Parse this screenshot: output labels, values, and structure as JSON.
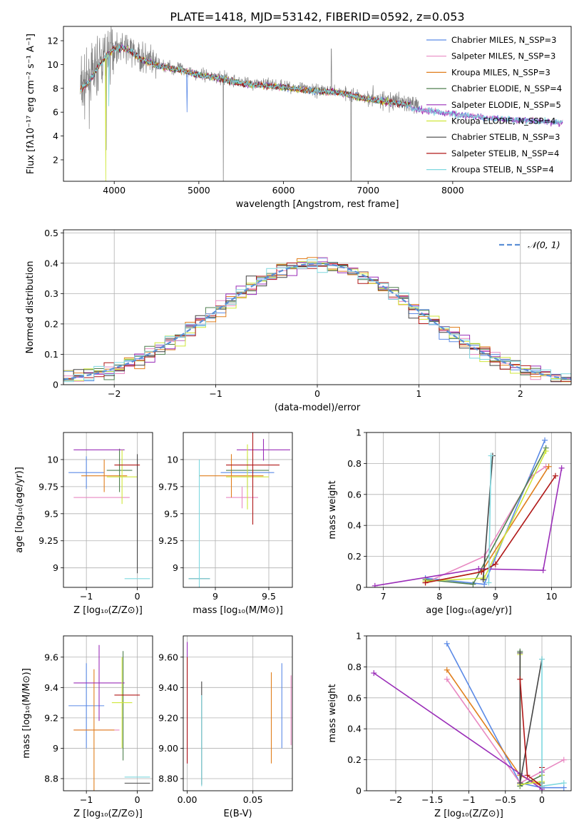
{
  "figure_title": "PLATE=1418, MJD=53142, FIBERID=0592, z=0.053",
  "colors": {
    "Chabrier MILES": "#5b8ae6",
    "Salpeter MILES": "#e889c2",
    "Kroupa MILES": "#e07e1c",
    "Chabrier ELODIE": "#4f7f4f",
    "Salpeter ELODIE": "#9a2db8",
    "Kroupa ELODIE": "#cfe73a",
    "Chabrier STELIB": "#444444",
    "Salpeter STELIB": "#b01818",
    "Kroupa STELIB": "#7fd8df",
    "data": "#808080",
    "normal": "#5b8fd6"
  },
  "chart_data": [
    {
      "id": "spectrum",
      "type": "line",
      "xlabel": "wavelength [Angstrom, rest frame]",
      "ylabel": "Flux [fλ10⁻¹⁷ erg cm⁻² s⁻¹ A⁻¹]",
      "xlim": [
        3400,
        9400
      ],
      "ylim": [
        0.2,
        13.2
      ],
      "xticks": [
        4000,
        5000,
        6000,
        7000,
        8000
      ],
      "yticks": [
        2,
        4,
        6,
        8,
        10,
        12
      ],
      "legend": "top-right",
      "grid": false,
      "data_trend": [
        [
          3600,
          8.0
        ],
        [
          3700,
          8.6
        ],
        [
          3800,
          9.8
        ],
        [
          3900,
          10.8
        ],
        [
          4000,
          11.4
        ],
        [
          4100,
          11.5
        ],
        [
          4200,
          11.2
        ],
        [
          4300,
          10.6
        ],
        [
          4500,
          10.0
        ],
        [
          4800,
          9.6
        ],
        [
          5000,
          9.2
        ],
        [
          5200,
          9.0
        ],
        [
          5500,
          8.5
        ],
        [
          6000,
          8.2
        ],
        [
          6300,
          7.9
        ],
        [
          6600,
          7.8
        ],
        [
          7000,
          7.2
        ],
        [
          7400,
          6.8
        ],
        [
          7700,
          6.6
        ],
        [
          8000,
          6.3
        ],
        [
          8500,
          5.9
        ],
        [
          9000,
          5.7
        ],
        [
          9300,
          5.6
        ]
      ],
      "series": [
        {
          "name": "Chabrier MILES, N_SSP=3"
        },
        {
          "name": "Salpeter MILES, N_SSP=3"
        },
        {
          "name": "Kroupa MILES, N_SSP=3"
        },
        {
          "name": "Chabrier ELODIE, N_SSP=4"
        },
        {
          "name": "Salpeter ELODIE, N_SSP=5"
        },
        {
          "name": "Kroupa ELODIE, N_SSP=4"
        },
        {
          "name": "Chabrier STELIB, N_SSP=3"
        },
        {
          "name": "Salpeter STELIB, N_SSP=4"
        },
        {
          "name": "Kroupa STELIB, N_SSP=4"
        }
      ]
    },
    {
      "id": "residuals",
      "type": "line",
      "xlabel": "(data-model)/error",
      "ylabel": "Normed distribution",
      "xlim": [
        -2.5,
        2.5
      ],
      "ylim": [
        0,
        0.51
      ],
      "xticks": [
        -2,
        -1,
        0,
        1,
        2
      ],
      "yticks": [
        0.0,
        0.1,
        0.2,
        0.3,
        0.4,
        0.5
      ],
      "grid": true,
      "legend": "top-right",
      "legend_label": "𝒩(0, 1)",
      "bin_width": 0.1,
      "histogram_series_count": 9
    },
    {
      "id": "age_vs_Z",
      "type": "scatter",
      "xlabel": "Z [log₁₀(Z/Z⊙)]",
      "ylabel": "age  [log₁₀(age/yr)]",
      "xlim": [
        -1.45,
        0.3
      ],
      "ylim": [
        8.82,
        10.25
      ],
      "xticks": [
        -1,
        0
      ],
      "yticks": [
        9.0,
        9.25,
        9.5,
        9.75,
        10.0
      ],
      "grid": true,
      "points": [
        {
          "model": "Chabrier MILES",
          "x": -1.0,
          "xerr": 0.35,
          "y": 9.88,
          "yerr": 0.15
        },
        {
          "model": "Salpeter MILES",
          "x": -0.7,
          "xerr": 0.55,
          "y": 9.65,
          "yerr": 0.0
        },
        {
          "model": "Kroupa MILES",
          "x": -0.65,
          "xerr": 0.45,
          "y": 9.85,
          "yerr": 0.15
        },
        {
          "model": "Chabrier ELODIE",
          "x": -0.35,
          "xerr": 0.25,
          "y": 9.9,
          "yerr": 0.2
        },
        {
          "model": "Salpeter ELODIE",
          "x": -0.75,
          "xerr": 0.5,
          "y": 10.09,
          "yerr": 0.0
        },
        {
          "model": "Kroupa ELODIE",
          "x": -0.3,
          "xerr": 0.3,
          "y": 9.84,
          "yerr": 0.25
        },
        {
          "model": "Chabrier STELIB",
          "x": 0.0,
          "xerr": 0.0,
          "y": 9.5,
          "yerr": 0.55
        },
        {
          "model": "Salpeter STELIB",
          "x": -0.2,
          "xerr": 0.25,
          "y": 9.95,
          "yerr": 0.0
        },
        {
          "model": "Kroupa STELIB",
          "x": 0.0,
          "xerr": 0.25,
          "y": 8.9,
          "yerr": 0.0
        }
      ]
    },
    {
      "id": "age_vs_mass",
      "type": "scatter",
      "xlabel": "mass [log₁₀(M/M⊙)]",
      "ylabel": "",
      "xlim": [
        8.7,
        9.72
      ],
      "ylim": [
        8.82,
        10.25
      ],
      "xticks": [
        9.0,
        9.5
      ],
      "yticks": [
        9.0,
        9.25,
        9.5,
        9.75,
        10.0
      ],
      "grid": true,
      "points": [
        {
          "model": "Chabrier MILES",
          "x": 9.3,
          "xerr": 0.25,
          "y": 9.88,
          "yerr": 0.15
        },
        {
          "model": "Salpeter MILES",
          "x": 9.25,
          "xerr": 0.15,
          "y": 9.65,
          "yerr": 0.1
        },
        {
          "model": "Kroupa MILES",
          "x": 9.15,
          "xerr": 0.3,
          "y": 9.85,
          "yerr": 0.2
        },
        {
          "model": "Chabrier ELODIE",
          "x": 9.3,
          "xerr": 0.2,
          "y": 9.9,
          "yerr": 0.0
        },
        {
          "model": "Salpeter ELODIE",
          "x": 9.45,
          "xerr": 0.25,
          "y": 10.09,
          "yerr": 0.1
        },
        {
          "model": "Kroupa ELODIE",
          "x": 9.3,
          "xerr": 0.2,
          "y": 9.84,
          "yerr": 0.3
        },
        {
          "model": "Chabrier STELIB",
          "x": 8.85,
          "xerr": 0.1,
          "y": 8.9,
          "yerr": 0.0
        },
        {
          "model": "Salpeter STELIB",
          "x": 9.35,
          "xerr": 0.25,
          "y": 9.95,
          "yerr": 0.55
        },
        {
          "model": "Kroupa STELIB",
          "x": 8.85,
          "xerr": 0.1,
          "y": 8.9,
          "yerr": 1.1
        }
      ]
    },
    {
      "id": "mass_weight_vs_age",
      "type": "line",
      "xlabel": "age  [log₁₀(age/yr)]",
      "ylabel": "mass weight",
      "xlim": [
        6.7,
        10.35
      ],
      "ylim": [
        0,
        1.0
      ],
      "xticks": [
        7,
        8,
        9,
        10
      ],
      "yticks": [
        0.0,
        0.2,
        0.4,
        0.6,
        0.8,
        1.0
      ],
      "grid": true,
      "series": [
        {
          "model": "Chabrier MILES",
          "x": [
            7.75,
            8.8,
            9.88
          ],
          "y": [
            0.06,
            0.02,
            0.95
          ]
        },
        {
          "model": "Salpeter MILES",
          "x": [
            7.75,
            8.8,
            9.65,
            9.9
          ],
          "y": [
            0.03,
            0.2,
            0.72,
            0.78
          ]
        },
        {
          "model": "Kroupa MILES",
          "x": [
            7.75,
            8.75,
            9.95
          ],
          "y": [
            0.03,
            0.1,
            0.78
          ]
        },
        {
          "model": "Chabrier ELODIE",
          "x": [
            7.75,
            8.6,
            9.9
          ],
          "y": [
            0.05,
            0.02,
            0.9
          ]
        },
        {
          "model": "Salpeter ELODIE",
          "x": [
            6.85,
            8.7,
            9.85,
            10.18
          ],
          "y": [
            0.01,
            0.12,
            0.11,
            0.77
          ]
        },
        {
          "model": "Kroupa ELODIE",
          "x": [
            7.75,
            8.8,
            9.9
          ],
          "y": [
            0.04,
            0.06,
            0.88
          ]
        },
        {
          "model": "Chabrier STELIB",
          "x": [
            8.78,
            8.95
          ],
          "y": [
            0.05,
            0.85
          ]
        },
        {
          "model": "Salpeter STELIB",
          "x": [
            7.75,
            8.75,
            9.0,
            10.07
          ],
          "y": [
            0.03,
            0.1,
            0.15,
            0.72
          ]
        },
        {
          "model": "Kroupa STELIB",
          "x": [
            8.88,
            8.92
          ],
          "y": [
            0.03,
            0.85
          ]
        }
      ]
    },
    {
      "id": "mass_vs_Z",
      "type": "scatter",
      "xlabel": "Z [log₁₀(Z/Z⊙)]",
      "ylabel": "mass [log₁₀(M/M⊙)]",
      "xlim": [
        -1.45,
        0.3
      ],
      "ylim": [
        8.72,
        9.74
      ],
      "xticks": [
        -1,
        0
      ],
      "yticks": [
        8.8,
        9.0,
        9.2,
        9.4,
        9.6
      ],
      "grid": true,
      "points": [
        {
          "model": "Chabrier MILES",
          "x": -1.0,
          "xerr": 0.35,
          "y": 9.28,
          "yerr": 0.28
        },
        {
          "model": "Salpeter MILES",
          "x": -0.8,
          "xerr": 0.45,
          "y": 9.12,
          "yerr": 0.0
        },
        {
          "model": "Kroupa MILES",
          "x": -0.85,
          "xerr": 0.4,
          "y": 9.12,
          "yerr": 0.4
        },
        {
          "model": "Chabrier ELODIE",
          "x": -0.28,
          "xerr": 0.0,
          "y": 9.28,
          "yerr": 0.36
        },
        {
          "model": "Salpeter ELODIE",
          "x": -0.75,
          "xerr": 0.5,
          "y": 9.43,
          "yerr": 0.25
        },
        {
          "model": "Kroupa ELODIE",
          "x": -0.3,
          "xerr": 0.2,
          "y": 9.3,
          "yerr": 0.3
        },
        {
          "model": "Chabrier STELIB",
          "x": 0.0,
          "xerr": 0.25,
          "y": 8.77,
          "yerr": 0.0
        },
        {
          "model": "Salpeter STELIB",
          "x": -0.2,
          "xerr": 0.25,
          "y": 9.35,
          "yerr": 0.0
        },
        {
          "model": "Kroupa STELIB",
          "x": 0.0,
          "xerr": 0.25,
          "y": 8.81,
          "yerr": 0.0
        }
      ]
    },
    {
      "id": "mass_vs_EBV",
      "type": "scatter",
      "xlabel": "E(B-V)",
      "ylabel": "",
      "xlim": [
        -0.003,
        0.08
      ],
      "ylim": [
        8.72,
        9.74
      ],
      "xticks": [
        0.0,
        0.05
      ],
      "yticks": [
        8.8,
        9.0,
        9.2,
        9.4,
        9.6
      ],
      "grid": true,
      "points": [
        {
          "model": "Salpeter ELODIE",
          "x": 0.0,
          "y": 9.3,
          "yerr": 0.4
        },
        {
          "model": "Salpeter STELIB",
          "x": 0.0,
          "y": 9.25,
          "yerr": 0.35
        },
        {
          "model": "Chabrier STELIB",
          "x": 0.011,
          "y": 9.1,
          "yerr": 0.34
        },
        {
          "model": "Kroupa STELIB",
          "x": 0.011,
          "y": 9.05,
          "yerr": 0.3
        },
        {
          "model": "Kroupa MILES",
          "x": 0.064,
          "y": 9.2,
          "yerr": 0.3
        },
        {
          "model": "Chabrier MILES",
          "x": 0.072,
          "y": 9.28,
          "yerr": 0.28
        },
        {
          "model": "Salpeter MILES",
          "x": 0.079,
          "y": 9.25,
          "yerr": 0.23
        }
      ]
    },
    {
      "id": "mass_weight_vs_Z",
      "type": "line",
      "xlabel": "Z [log₁₀(Z/Z⊙)]",
      "ylabel": "mass weight",
      "xlim": [
        -2.4,
        0.4
      ],
      "ylim": [
        0,
        1.0
      ],
      "xticks": [
        -2.0,
        -1.5,
        -1.0,
        -0.5,
        0.0
      ],
      "yticks": [
        0.0,
        0.2,
        0.4,
        0.6,
        0.8,
        1.0
      ],
      "grid": true,
      "series": [
        {
          "model": "Chabrier MILES",
          "x": [
            -1.3,
            -0.3,
            0.0,
            0.3
          ],
          "y": [
            0.95,
            0.05,
            0.02,
            0.02
          ]
        },
        {
          "model": "Salpeter MILES",
          "x": [
            -1.3,
            -0.3,
            0.3
          ],
          "y": [
            0.72,
            0.05,
            0.2
          ]
        },
        {
          "model": "Kroupa MILES",
          "x": [
            -1.3,
            -0.3,
            0.0
          ],
          "y": [
            0.78,
            0.1,
            0.03
          ]
        },
        {
          "model": "Chabrier ELODIE",
          "x": [
            -0.3,
            -0.3,
            0.0,
            0.0
          ],
          "y": [
            0.9,
            0.03,
            0.1,
            0.05
          ]
        },
        {
          "model": "Salpeter ELODIE",
          "x": [
            -2.3,
            -0.3,
            0.0,
            0.0
          ],
          "y": [
            0.76,
            0.11,
            0.01,
            0.12
          ]
        },
        {
          "model": "Kroupa ELODIE",
          "x": [
            -0.3,
            -0.3,
            0.0,
            0.0
          ],
          "y": [
            0.88,
            0.04,
            0.06,
            0.1
          ]
        },
        {
          "model": "Chabrier STELIB",
          "x": [
            -0.3,
            -0.3,
            0.0
          ],
          "y": [
            0.89,
            0.05,
            0.85
          ]
        },
        {
          "model": "Salpeter STELIB",
          "x": [
            -0.3,
            -0.2,
            0.0,
            0.0
          ],
          "y": [
            0.72,
            0.1,
            0.03,
            0.15
          ]
        },
        {
          "model": "Kroupa STELIB",
          "x": [
            0.0,
            0.0,
            0.3
          ],
          "y": [
            0.85,
            0.03,
            0.05
          ]
        }
      ]
    }
  ]
}
